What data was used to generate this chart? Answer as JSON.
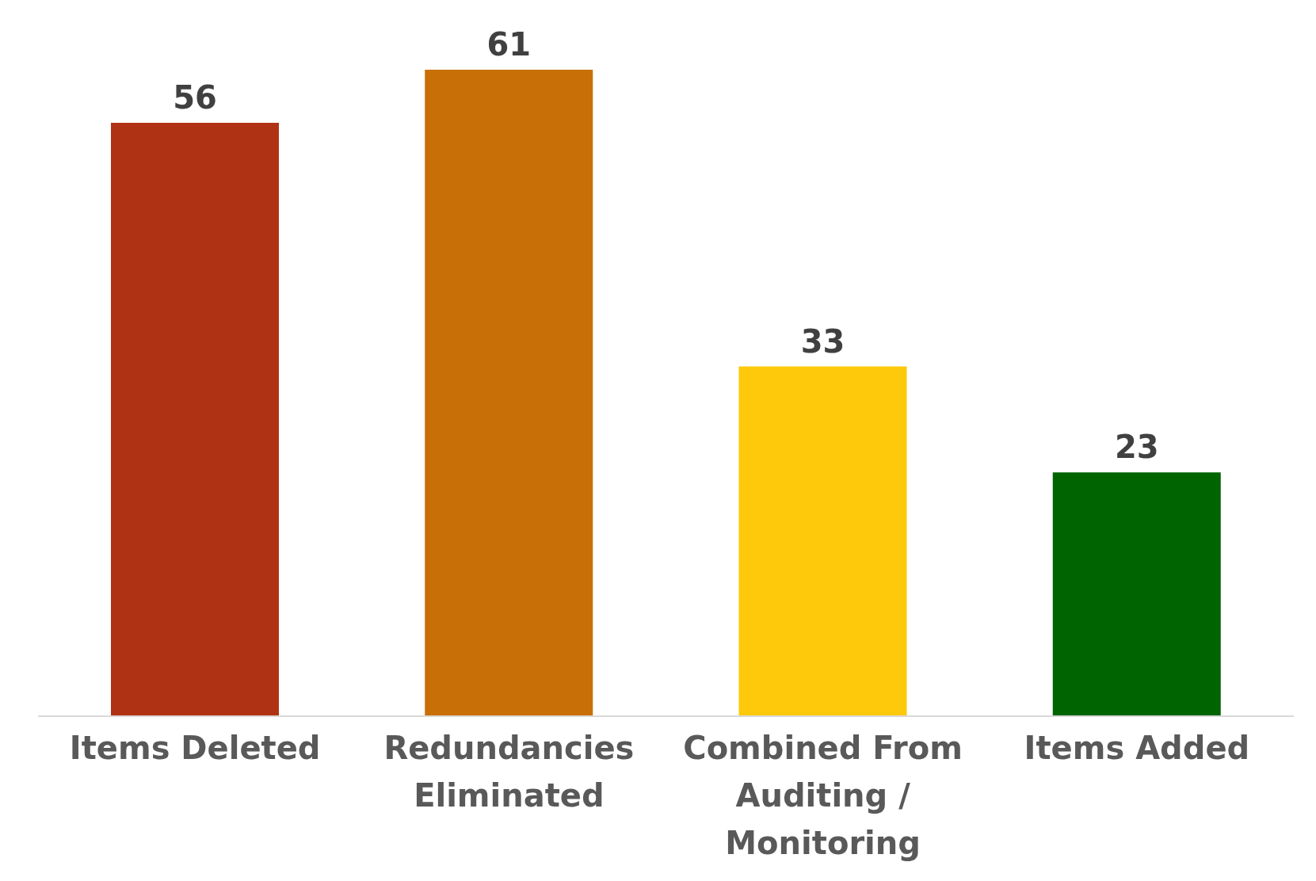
{
  "chart_data": {
    "type": "bar",
    "categories": [
      "Items Deleted",
      "Redundancies Eliminated",
      "Combined From Auditing / Monitoring",
      "Items Added"
    ],
    "values": [
      56,
      61,
      33,
      23
    ],
    "colors": [
      "#b03214",
      "#c96f07",
      "#fdc90a",
      "#006400"
    ],
    "data_labels": true
  }
}
